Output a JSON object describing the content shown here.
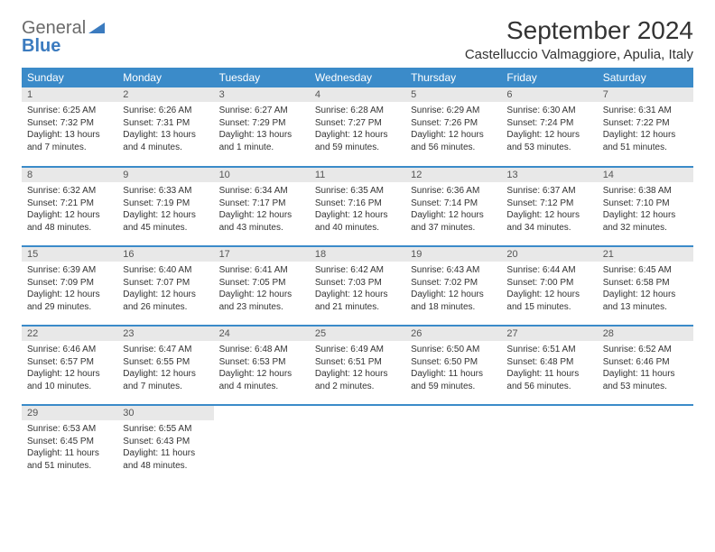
{
  "brand": {
    "word1": "General",
    "word2": "Blue"
  },
  "title": "September 2024",
  "location": "Castelluccio Valmaggiore, Apulia, Italy",
  "colors": {
    "header_bg": "#3b8bc9",
    "header_text": "#ffffff",
    "daynum_bg": "#e8e8e8",
    "row_divider": "#3b8bc9",
    "brand_gray": "#6a6a6a",
    "brand_blue": "#3b7bbf",
    "page_bg": "#ffffff"
  },
  "weekdays": [
    "Sunday",
    "Monday",
    "Tuesday",
    "Wednesday",
    "Thursday",
    "Friday",
    "Saturday"
  ],
  "days": [
    {
      "n": "1",
      "sr": "Sunrise: 6:25 AM",
      "ss": "Sunset: 7:32 PM",
      "dl": "Daylight: 13 hours and 7 minutes."
    },
    {
      "n": "2",
      "sr": "Sunrise: 6:26 AM",
      "ss": "Sunset: 7:31 PM",
      "dl": "Daylight: 13 hours and 4 minutes."
    },
    {
      "n": "3",
      "sr": "Sunrise: 6:27 AM",
      "ss": "Sunset: 7:29 PM",
      "dl": "Daylight: 13 hours and 1 minute."
    },
    {
      "n": "4",
      "sr": "Sunrise: 6:28 AM",
      "ss": "Sunset: 7:27 PM",
      "dl": "Daylight: 12 hours and 59 minutes."
    },
    {
      "n": "5",
      "sr": "Sunrise: 6:29 AM",
      "ss": "Sunset: 7:26 PM",
      "dl": "Daylight: 12 hours and 56 minutes."
    },
    {
      "n": "6",
      "sr": "Sunrise: 6:30 AM",
      "ss": "Sunset: 7:24 PM",
      "dl": "Daylight: 12 hours and 53 minutes."
    },
    {
      "n": "7",
      "sr": "Sunrise: 6:31 AM",
      "ss": "Sunset: 7:22 PM",
      "dl": "Daylight: 12 hours and 51 minutes."
    },
    {
      "n": "8",
      "sr": "Sunrise: 6:32 AM",
      "ss": "Sunset: 7:21 PM",
      "dl": "Daylight: 12 hours and 48 minutes."
    },
    {
      "n": "9",
      "sr": "Sunrise: 6:33 AM",
      "ss": "Sunset: 7:19 PM",
      "dl": "Daylight: 12 hours and 45 minutes."
    },
    {
      "n": "10",
      "sr": "Sunrise: 6:34 AM",
      "ss": "Sunset: 7:17 PM",
      "dl": "Daylight: 12 hours and 43 minutes."
    },
    {
      "n": "11",
      "sr": "Sunrise: 6:35 AM",
      "ss": "Sunset: 7:16 PM",
      "dl": "Daylight: 12 hours and 40 minutes."
    },
    {
      "n": "12",
      "sr": "Sunrise: 6:36 AM",
      "ss": "Sunset: 7:14 PM",
      "dl": "Daylight: 12 hours and 37 minutes."
    },
    {
      "n": "13",
      "sr": "Sunrise: 6:37 AM",
      "ss": "Sunset: 7:12 PM",
      "dl": "Daylight: 12 hours and 34 minutes."
    },
    {
      "n": "14",
      "sr": "Sunrise: 6:38 AM",
      "ss": "Sunset: 7:10 PM",
      "dl": "Daylight: 12 hours and 32 minutes."
    },
    {
      "n": "15",
      "sr": "Sunrise: 6:39 AM",
      "ss": "Sunset: 7:09 PM",
      "dl": "Daylight: 12 hours and 29 minutes."
    },
    {
      "n": "16",
      "sr": "Sunrise: 6:40 AM",
      "ss": "Sunset: 7:07 PM",
      "dl": "Daylight: 12 hours and 26 minutes."
    },
    {
      "n": "17",
      "sr": "Sunrise: 6:41 AM",
      "ss": "Sunset: 7:05 PM",
      "dl": "Daylight: 12 hours and 23 minutes."
    },
    {
      "n": "18",
      "sr": "Sunrise: 6:42 AM",
      "ss": "Sunset: 7:03 PM",
      "dl": "Daylight: 12 hours and 21 minutes."
    },
    {
      "n": "19",
      "sr": "Sunrise: 6:43 AM",
      "ss": "Sunset: 7:02 PM",
      "dl": "Daylight: 12 hours and 18 minutes."
    },
    {
      "n": "20",
      "sr": "Sunrise: 6:44 AM",
      "ss": "Sunset: 7:00 PM",
      "dl": "Daylight: 12 hours and 15 minutes."
    },
    {
      "n": "21",
      "sr": "Sunrise: 6:45 AM",
      "ss": "Sunset: 6:58 PM",
      "dl": "Daylight: 12 hours and 13 minutes."
    },
    {
      "n": "22",
      "sr": "Sunrise: 6:46 AM",
      "ss": "Sunset: 6:57 PM",
      "dl": "Daylight: 12 hours and 10 minutes."
    },
    {
      "n": "23",
      "sr": "Sunrise: 6:47 AM",
      "ss": "Sunset: 6:55 PM",
      "dl": "Daylight: 12 hours and 7 minutes."
    },
    {
      "n": "24",
      "sr": "Sunrise: 6:48 AM",
      "ss": "Sunset: 6:53 PM",
      "dl": "Daylight: 12 hours and 4 minutes."
    },
    {
      "n": "25",
      "sr": "Sunrise: 6:49 AM",
      "ss": "Sunset: 6:51 PM",
      "dl": "Daylight: 12 hours and 2 minutes."
    },
    {
      "n": "26",
      "sr": "Sunrise: 6:50 AM",
      "ss": "Sunset: 6:50 PM",
      "dl": "Daylight: 11 hours and 59 minutes."
    },
    {
      "n": "27",
      "sr": "Sunrise: 6:51 AM",
      "ss": "Sunset: 6:48 PM",
      "dl": "Daylight: 11 hours and 56 minutes."
    },
    {
      "n": "28",
      "sr": "Sunrise: 6:52 AM",
      "ss": "Sunset: 6:46 PM",
      "dl": "Daylight: 11 hours and 53 minutes."
    },
    {
      "n": "29",
      "sr": "Sunrise: 6:53 AM",
      "ss": "Sunset: 6:45 PM",
      "dl": "Daylight: 11 hours and 51 minutes."
    },
    {
      "n": "30",
      "sr": "Sunrise: 6:55 AM",
      "ss": "Sunset: 6:43 PM",
      "dl": "Daylight: 11 hours and 48 minutes."
    }
  ]
}
